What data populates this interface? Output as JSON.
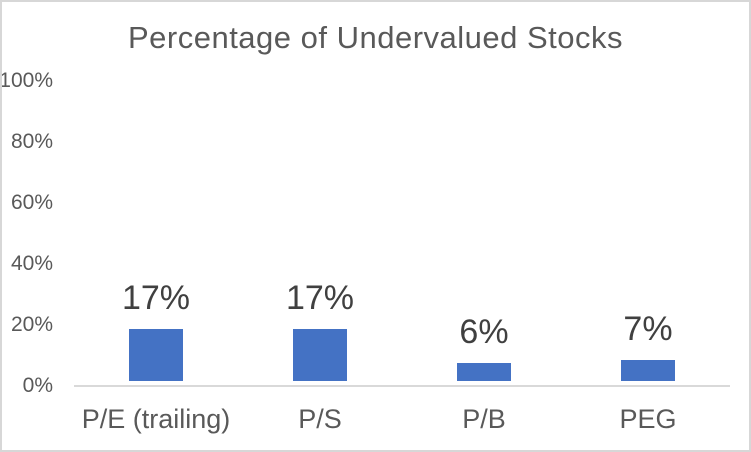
{
  "chart_data": {
    "type": "bar",
    "title": "Percentage of Undervalued Stocks",
    "categories": [
      "P/E (trailing)",
      "P/S",
      "P/B",
      "PEG"
    ],
    "values": [
      17,
      17,
      6,
      7
    ],
    "data_labels": [
      "17%",
      "17%",
      "6%",
      "7%"
    ],
    "xlabel": "",
    "ylabel": "",
    "ylim": [
      0,
      100
    ],
    "ytick_values": [
      0,
      20,
      40,
      60,
      80,
      100
    ],
    "ytick_labels": [
      "0%",
      "20%",
      "40%",
      "60%",
      "80%",
      "100%"
    ],
    "grid": false,
    "legend": false,
    "bar_color": "#4472C4",
    "title_color": "#595959",
    "tick_label_color": "#595959",
    "data_label_color": "#404040",
    "axis_line_color": "#D9D9D9"
  }
}
